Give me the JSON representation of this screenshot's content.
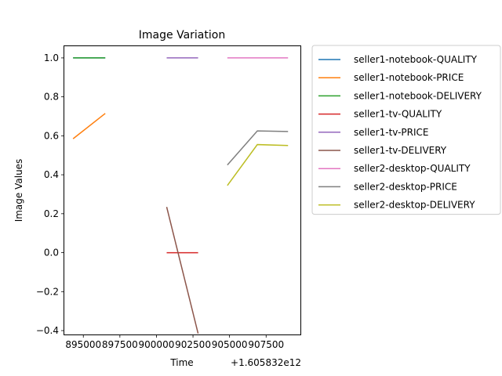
{
  "chart_data": {
    "type": "line",
    "title": "Image Variation",
    "xlabel": "Time",
    "ylabel": "Image Values",
    "x_offset_label": "+1.605832e12",
    "xlim": [
      893700,
      909900
    ],
    "ylim": [
      -0.42,
      1.06
    ],
    "x_ticks": [
      895000,
      897500,
      900000,
      902500,
      905000,
      907500
    ],
    "x_tick_labels": [
      "895000",
      "897500",
      "900000",
      "902500",
      "905000",
      "907500"
    ],
    "y_ticks": [
      -0.4,
      -0.2,
      0.0,
      0.2,
      0.4,
      0.6,
      0.8,
      1.0
    ],
    "y_tick_labels": [
      "−0.4",
      "−0.2",
      "0.0",
      "0.2",
      "0.4",
      "0.6",
      "0.8",
      "1.0"
    ],
    "grid": false,
    "legend_position": "outside-right",
    "series": [
      {
        "name": "seller1-notebook-QUALITY",
        "color": "#1f77b4",
        "x": [
          894300,
          896500
        ],
        "y": [
          1.0,
          1.0
        ]
      },
      {
        "name": "seller1-notebook-PRICE",
        "color": "#ff7f0e",
        "x": [
          894300,
          896500
        ],
        "y": [
          0.585,
          0.715
        ]
      },
      {
        "name": "seller1-notebook-DELIVERY",
        "color": "#2ca02c",
        "x": [
          894300,
          896500
        ],
        "y": [
          1.0,
          1.0
        ]
      },
      {
        "name": "seller1-tv-QUALITY",
        "color": "#d62728",
        "x": [
          900700,
          902850
        ],
        "y": [
          0.0,
          0.0
        ]
      },
      {
        "name": "seller1-tv-PRICE",
        "color": "#9467bd",
        "x": [
          900700,
          902850
        ],
        "y": [
          1.0,
          1.0
        ]
      },
      {
        "name": "seller1-tv-DELIVERY",
        "color": "#8c564b",
        "x": [
          900700,
          902850
        ],
        "y": [
          0.235,
          -0.415
        ]
      },
      {
        "name": "seller2-desktop-QUALITY",
        "color": "#e377c2",
        "x": [
          904850,
          906900,
          909000
        ],
        "y": [
          1.0,
          1.0,
          1.0
        ]
      },
      {
        "name": "seller2-desktop-PRICE",
        "color": "#7f7f7f",
        "x": [
          904850,
          906900,
          909000
        ],
        "y": [
          0.45,
          0.625,
          0.622
        ]
      },
      {
        "name": "seller2-desktop-DELIVERY",
        "color": "#bcbd22",
        "x": [
          904850,
          906900,
          909000
        ],
        "y": [
          0.345,
          0.555,
          0.55
        ]
      }
    ]
  }
}
